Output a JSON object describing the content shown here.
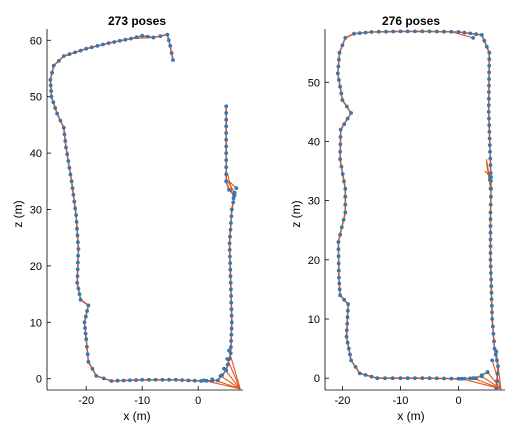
{
  "chart_data": [
    {
      "type": "scatter",
      "title": "273 poses",
      "xlabel": "x (m)",
      "ylabel": "z (m)",
      "xlim": [
        -27,
        8
      ],
      "ylim": [
        -2,
        62
      ],
      "xticks": [
        -20,
        -10,
        0
      ],
      "yticks": [
        0,
        10,
        20,
        30,
        40,
        50,
        60
      ],
      "colors": {
        "poses": "#2f79b5",
        "edges": "#e2541f"
      },
      "path": [
        [
          -4.5,
          56.5
        ],
        [
          -5,
          59
        ],
        [
          -5.5,
          61
        ],
        [
          -8,
          60.5
        ],
        [
          -10,
          60.8
        ],
        [
          -12,
          60.3
        ],
        [
          -16,
          59.5
        ],
        [
          -20,
          58.5
        ],
        [
          -24,
          57.2
        ],
        [
          -25.8,
          55.5
        ],
        [
          -26.4,
          53
        ],
        [
          -26.2,
          50
        ],
        [
          -25.2,
          47
        ],
        [
          -24,
          44.5
        ],
        [
          -23.6,
          41
        ],
        [
          -22.6,
          35
        ],
        [
          -21.8,
          29
        ],
        [
          -21.4,
          23
        ],
        [
          -21.6,
          17
        ],
        [
          -21,
          14
        ],
        [
          -19.6,
          13
        ],
        [
          -20.3,
          10
        ],
        [
          -20,
          7
        ],
        [
          -19.6,
          3
        ],
        [
          -18.2,
          0.5
        ],
        [
          -15.5,
          -0.4
        ],
        [
          -10,
          -0.2
        ],
        [
          -4,
          -0.2
        ],
        [
          0.5,
          -0.4
        ],
        [
          3.5,
          -0.3
        ],
        [
          5,
          1.5
        ],
        [
          5.8,
          4.5
        ],
        [
          6,
          10
        ],
        [
          5.8,
          17
        ],
        [
          5.6,
          24
        ],
        [
          6,
          30
        ],
        [
          6.5,
          32.5
        ],
        [
          5.5,
          33.5
        ],
        [
          5,
          35
        ],
        [
          5,
          40
        ],
        [
          5,
          48.3
        ]
      ],
      "loop_closures": [
        {
          "from": [
            7.5,
            -1.8
          ],
          "to": [
            1,
            -0.3
          ]
        },
        {
          "from": [
            7.5,
            -1.8
          ],
          "to": [
            2.5,
            -0.1
          ]
        },
        {
          "from": [
            7.5,
            -1.8
          ],
          "to": [
            4,
            0.5
          ]
        },
        {
          "from": [
            7.5,
            -1.8
          ],
          "to": [
            4.6,
            1.8
          ]
        },
        {
          "from": [
            7.5,
            -1.8
          ],
          "to": [
            5.2,
            3.5
          ]
        },
        {
          "from": [
            7.5,
            -1.8
          ],
          "to": [
            5.5,
            5
          ]
        },
        {
          "from": [
            5,
            35.5
          ],
          "to": [
            6.5,
            33
          ]
        },
        {
          "from": [
            5.2,
            36.5
          ],
          "to": [
            6.3,
            32
          ]
        },
        {
          "from": [
            5.5,
            35
          ],
          "to": [
            6.8,
            33.8
          ]
        },
        {
          "from": [
            -12,
            60.3
          ],
          "to": [
            -8,
            60.5
          ]
        }
      ]
    },
    {
      "type": "scatter",
      "title": "276 poses",
      "xlabel": "x (m)",
      "ylabel": "z (m)",
      "xlim": [
        -23,
        8
      ],
      "ylim": [
        -2,
        59
      ],
      "xticks": [
        -20,
        -10,
        0
      ],
      "yticks": [
        0,
        10,
        20,
        30,
        40,
        50
      ],
      "colors": {
        "poses": "#2f79b5",
        "edges": "#e2541f"
      },
      "path": [
        [
          6.5,
          -1.8
        ],
        [
          6.8,
          2
        ],
        [
          6.2,
          5
        ],
        [
          5.8,
          10
        ],
        [
          5.5,
          20
        ],
        [
          5.5,
          28
        ],
        [
          5.6,
          32
        ],
        [
          5.5,
          36
        ],
        [
          5.2,
          45
        ],
        [
          5.3,
          55
        ],
        [
          4,
          58
        ],
        [
          0,
          58.5
        ],
        [
          -5,
          58.6
        ],
        [
          -10,
          58.6
        ],
        [
          -15,
          58.5
        ],
        [
          -18,
          58.2
        ],
        [
          -19.5,
          57.5
        ],
        [
          -20.5,
          55
        ],
        [
          -20.8,
          51.5
        ],
        [
          -20,
          47
        ],
        [
          -18.5,
          44.8
        ],
        [
          -20.3,
          42
        ],
        [
          -20.4,
          37
        ],
        [
          -19.5,
          32
        ],
        [
          -19.5,
          28
        ],
        [
          -20.7,
          23
        ],
        [
          -20.6,
          17
        ],
        [
          -20.4,
          14
        ],
        [
          -19,
          12.5
        ],
        [
          -19.3,
          7
        ],
        [
          -18.5,
          3
        ],
        [
          -17,
          0.8
        ],
        [
          -14,
          0
        ],
        [
          -10,
          0
        ],
        [
          -5,
          0
        ],
        [
          0,
          -0.1
        ],
        [
          3,
          0
        ],
        [
          5,
          1
        ]
      ],
      "loop_closures": [
        {
          "from": [
            7.3,
            -1.8
          ],
          "to": [
            0.5,
            -0.1
          ]
        },
        {
          "from": [
            7.3,
            -1.8
          ],
          "to": [
            2.5,
            0
          ]
        },
        {
          "from": [
            7.3,
            -1.8
          ],
          "to": [
            4,
            0.3
          ]
        },
        {
          "from": [
            7.3,
            -1.8
          ],
          "to": [
            5,
            1
          ]
        },
        {
          "from": [
            7.3,
            -1.8
          ],
          "to": [
            5.8,
            3
          ]
        },
        {
          "from": [
            7.3,
            -1.8
          ],
          "to": [
            6.5,
            4.5
          ]
        },
        {
          "from": [
            4.8,
            37
          ],
          "to": [
            5.4,
            33.5
          ]
        },
        {
          "from": [
            4.8,
            36.5
          ],
          "to": [
            5.5,
            32
          ]
        },
        {
          "from": [
            4.5,
            35
          ],
          "to": [
            5.6,
            34
          ]
        },
        {
          "from": [
            -1.5,
            58.6
          ],
          "to": [
            2.5,
            57.5
          ]
        }
      ]
    }
  ]
}
